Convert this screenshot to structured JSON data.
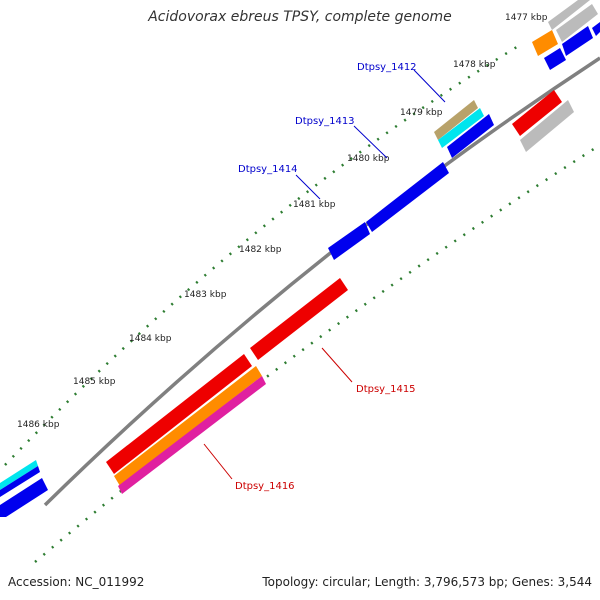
{
  "title": "Acidovorax ebreus TPSY, complete genome",
  "footer": {
    "accession": "Accession: NC_011992",
    "summary": "Topology: circular; Length: 3,796,573 bp; Genes: 3,544"
  },
  "colors": {
    "backbone": "#7a7a7a",
    "tick": "#2e7d32",
    "gene_blue": "#0000ee",
    "gene_red": "#ee0000",
    "gene_gray": "#bbbbbb",
    "gene_orange": "#ff8c00",
    "gene_cyan": "#00e5ee",
    "gene_tan": "#b8a26a",
    "gene_magenta": "#e020a0",
    "label_blue": "#0000cc",
    "label_red": "#cc0000"
  },
  "kbp_labels": [
    "1477 kbp",
    "1478 kbp",
    "1479 kbp",
    "1480 kbp",
    "1481 kbp",
    "1482 kbp",
    "1483 kbp",
    "1484 kbp",
    "1485 kbp",
    "1486 kbp"
  ],
  "gene_labels": [
    "Dtpsy_1412",
    "Dtpsy_1413",
    "Dtpsy_1414",
    "Dtpsy_1415",
    "Dtpsy_1416"
  ]
}
